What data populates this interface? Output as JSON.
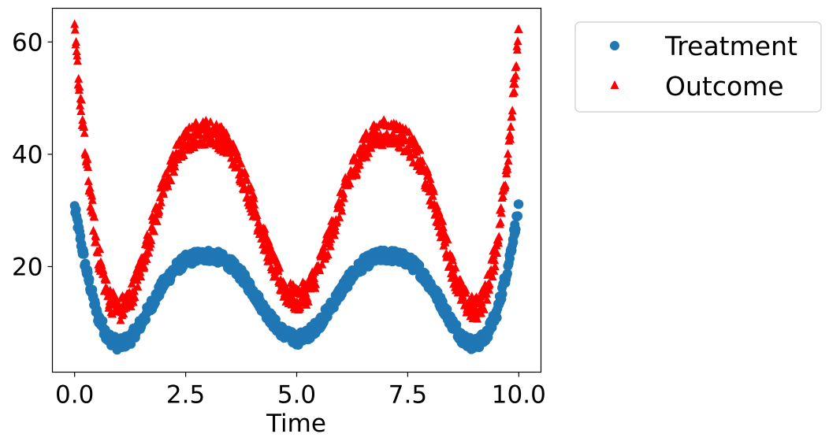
{
  "chart_data": {
    "type": "scatter",
    "title": "",
    "xlabel": "Time",
    "ylabel": "",
    "xlim": [
      -0.5,
      10.5
    ],
    "ylim": [
      1.2,
      66
    ],
    "xticks": [
      0.0,
      2.5,
      5.0,
      7.5,
      10.0
    ],
    "xtick_labels": [
      "0.0",
      "2.5",
      "5.0",
      "7.5",
      "10.0"
    ],
    "yticks": [
      20,
      40,
      60
    ],
    "ytick_labels": [
      "20",
      "40",
      "60"
    ],
    "grid": false,
    "legend_position": "outside-right-top",
    "x_range": [
      0,
      10
    ],
    "series": [
      {
        "name": "Treatment",
        "marker": "circle",
        "color": "#1f77b4",
        "band_width": 2.2,
        "x": [
          0.0,
          0.25,
          0.5,
          0.75,
          1.0,
          1.25,
          1.5,
          1.75,
          2.0,
          2.25,
          2.5,
          2.75,
          3.0,
          3.25,
          3.5,
          3.75,
          4.0,
          4.25,
          4.5,
          4.75,
          5.0,
          5.25,
          5.5,
          5.75,
          6.0,
          6.25,
          6.5,
          6.75,
          7.0,
          7.25,
          7.5,
          7.75,
          8.0,
          8.25,
          8.5,
          8.75,
          9.0,
          9.25,
          9.5,
          9.75,
          10.0
        ],
        "y": [
          30.5,
          19.8,
          11.6,
          7.4,
          6.0,
          7.1,
          9.9,
          13.5,
          16.9,
          19.5,
          21.1,
          21.8,
          22.0,
          21.6,
          20.5,
          18.5,
          15.7,
          12.6,
          9.8,
          7.8,
          7.0,
          7.8,
          9.8,
          12.6,
          15.7,
          18.5,
          20.5,
          21.6,
          22.0,
          21.8,
          21.1,
          19.5,
          16.9,
          13.5,
          9.9,
          7.1,
          6.0,
          7.4,
          11.6,
          19.8,
          30.5
        ]
      },
      {
        "name": "Outcome",
        "marker": "triangle",
        "color": "#ff0000",
        "band_width": 4.5,
        "x": [
          0.0,
          0.25,
          0.5,
          0.75,
          1.0,
          1.25,
          1.5,
          1.75,
          2.0,
          2.25,
          2.5,
          2.75,
          3.0,
          3.25,
          3.5,
          3.75,
          4.0,
          4.25,
          4.5,
          4.75,
          5.0,
          5.25,
          5.5,
          5.75,
          6.0,
          6.25,
          6.5,
          6.75,
          7.0,
          7.25,
          7.5,
          7.75,
          8.0,
          8.25,
          8.5,
          8.75,
          9.0,
          9.25,
          9.5,
          9.75,
          10.0
        ],
        "y": [
          61.0,
          39.6,
          23.2,
          14.8,
          12.0,
          14.2,
          19.8,
          27.0,
          33.8,
          39.0,
          42.2,
          43.6,
          44.0,
          43.2,
          41.0,
          37.0,
          31.4,
          25.2,
          19.6,
          15.6,
          14.0,
          15.6,
          19.6,
          25.2,
          31.4,
          37.0,
          41.0,
          43.2,
          44.0,
          43.6,
          42.2,
          39.0,
          33.8,
          27.0,
          19.8,
          14.2,
          12.0,
          14.8,
          23.2,
          39.6,
          61.0
        ]
      }
    ]
  }
}
